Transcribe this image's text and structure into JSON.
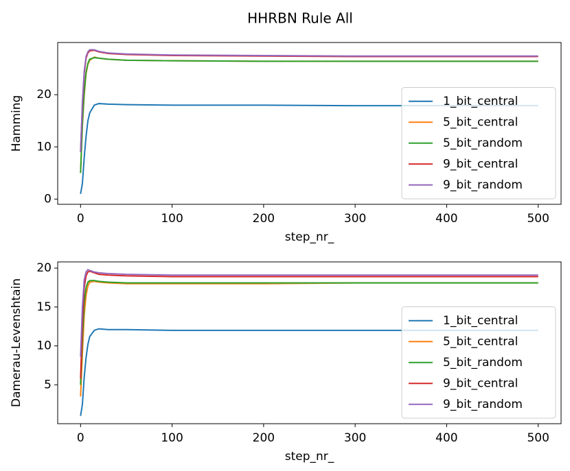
{
  "title": "HHRBN Rule All",
  "chart_data": [
    {
      "type": "line",
      "x_label": "step_nr_",
      "y_label": "Hamming",
      "x": [
        0,
        2,
        4,
        6,
        8,
        10,
        15,
        20,
        30,
        50,
        100,
        200,
        300,
        400,
        500
      ],
      "series": [
        {
          "name": "1_bit_central",
          "color": "#1f77b4",
          "values": [
            1,
            3,
            8,
            12,
            15,
            16.5,
            18,
            18.3,
            18.2,
            18.1,
            18.0,
            18.0,
            17.9,
            17.9,
            17.9
          ]
        },
        {
          "name": "5_bit_central",
          "color": "#ff7f0e",
          "values": [
            5,
            14,
            20,
            24,
            25.8,
            26.6,
            27.2,
            27.0,
            26.8,
            26.6,
            26.5,
            26.4,
            26.4,
            26.4,
            26.4
          ]
        },
        {
          "name": "5_bit_random",
          "color": "#2ca02c",
          "values": [
            5,
            14.5,
            20.5,
            24.3,
            26,
            26.8,
            27.1,
            27.0,
            26.8,
            26.6,
            26.5,
            26.4,
            26.4,
            26.4,
            26.4
          ]
        },
        {
          "name": "9_bit_central",
          "color": "#d62728",
          "values": [
            9,
            18,
            24,
            27,
            28,
            28.4,
            28.5,
            28.2,
            27.9,
            27.7,
            27.5,
            27.4,
            27.3,
            27.3,
            27.3
          ]
        },
        {
          "name": "9_bit_random",
          "color": "#9467bd",
          "values": [
            9,
            18.5,
            24.5,
            27.3,
            28.2,
            28.6,
            28.6,
            28.3,
            28.0,
            27.8,
            27.6,
            27.5,
            27.4,
            27.4,
            27.4
          ]
        }
      ],
      "xlim": [
        -25,
        525
      ],
      "ylim": [
        -1,
        30
      ],
      "xticks": [
        0,
        100,
        200,
        300,
        400,
        500
      ],
      "yticks": [
        0,
        10,
        20
      ],
      "legend": "lower right"
    },
    {
      "type": "line",
      "x_label": "step_nr_",
      "y_label": "Damerau-Levenshtain",
      "x": [
        0,
        2,
        4,
        6,
        8,
        10,
        15,
        20,
        30,
        50,
        100,
        200,
        300,
        400,
        500
      ],
      "series": [
        {
          "name": "1_bit_central",
          "color": "#1f77b4",
          "values": [
            1,
            2.5,
            6,
            8.5,
            10.2,
            11.2,
            12,
            12.2,
            12.1,
            12.1,
            12.0,
            12.0,
            12.0,
            12.0,
            12.0
          ]
        },
        {
          "name": "5_bit_central",
          "color": "#ff7f0e",
          "values": [
            3.5,
            9,
            14,
            16.5,
            17.7,
            18.2,
            18.3,
            18.2,
            18.1,
            18.0,
            18.0,
            18.0,
            18.1,
            18.1,
            18.1
          ]
        },
        {
          "name": "5_bit_random",
          "color": "#2ca02c",
          "values": [
            5,
            11,
            15.5,
            17.5,
            18.2,
            18.4,
            18.4,
            18.3,
            18.2,
            18.1,
            18.1,
            18.1,
            18.1,
            18.1,
            18.1
          ]
        },
        {
          "name": "9_bit_central",
          "color": "#d62728",
          "values": [
            5.8,
            13,
            17.5,
            19,
            19.5,
            19.6,
            19.4,
            19.2,
            19.1,
            19.0,
            18.9,
            18.9,
            18.9,
            18.9,
            18.9
          ]
        },
        {
          "name": "9_bit_random",
          "color": "#9467bd",
          "values": [
            8.6,
            15,
            18.5,
            19.5,
            19.8,
            19.7,
            19.5,
            19.4,
            19.3,
            19.2,
            19.1,
            19.1,
            19.1,
            19.1,
            19.1
          ]
        }
      ],
      "xlim": [
        -25,
        525
      ],
      "ylim": [
        0,
        20.8
      ],
      "xticks": [
        0,
        100,
        200,
        300,
        400,
        500
      ],
      "yticks": [
        5,
        10,
        15,
        20
      ],
      "legend": "lower right"
    }
  ]
}
